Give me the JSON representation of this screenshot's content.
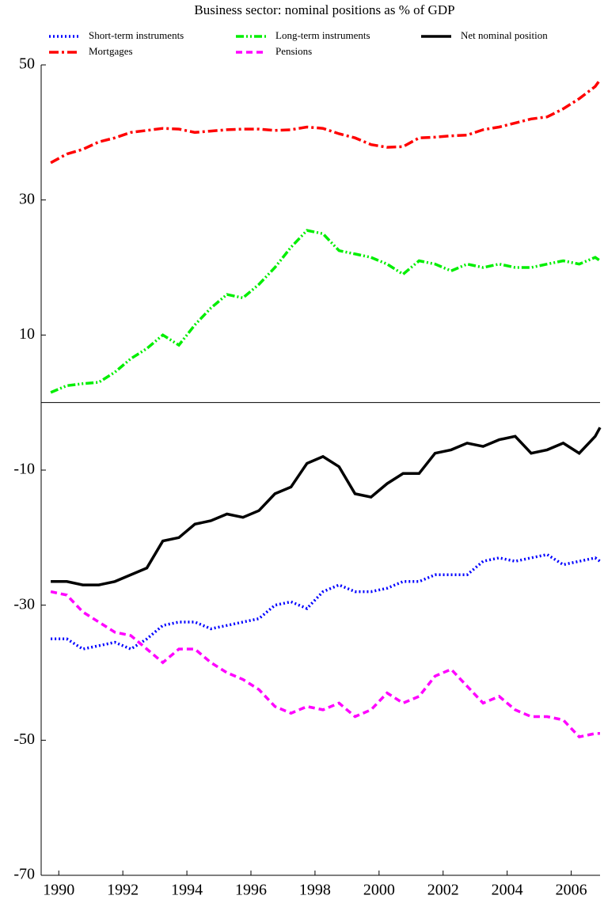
{
  "chart_data": {
    "type": "line",
    "title": "Business sector: nominal positions as % of GDP",
    "x": [
      1989.75,
      1990.25,
      1990.75,
      1991.25,
      1991.75,
      1992.25,
      1992.75,
      1993.25,
      1993.75,
      1994.25,
      1994.75,
      1995.25,
      1995.75,
      1996.25,
      1996.75,
      1997.25,
      1997.75,
      1998.25,
      1998.75,
      1999.25,
      1999.75,
      2000.25,
      2000.75,
      2001.25,
      2001.75,
      2002.25,
      2002.75,
      2003.25,
      2003.75,
      2004.25,
      2004.75,
      2005.25,
      2005.75,
      2006.25,
      2006.75,
      2006.9
    ],
    "series": [
      {
        "name": "Short-term instruments",
        "color": "#0000ff",
        "dash": "dotted",
        "values": [
          -35,
          -35,
          -36.5,
          -36,
          -35.5,
          -36.5,
          -35,
          -33,
          -32.5,
          -32.5,
          -33.5,
          -33,
          -32.5,
          -32,
          -30,
          -29.5,
          -30.5,
          -28,
          -27,
          -28,
          -28,
          -27.5,
          -26.5,
          -26.5,
          -25.5,
          -25.5,
          -25.5,
          -23.5,
          -23,
          -23.5,
          -23,
          -22.5,
          -24,
          -23.5,
          -23,
          -23.5
        ]
      },
      {
        "name": "Long-term instruments",
        "color": "#00ee00",
        "dash": "dashdotdot",
        "values": [
          1.5,
          2.5,
          2.8,
          3,
          4.5,
          6.5,
          8,
          10,
          8.5,
          11.5,
          14,
          16,
          15.5,
          17.5,
          20,
          23,
          25.5,
          25,
          22.5,
          22,
          21.5,
          20.5,
          19,
          21,
          20.5,
          19.5,
          20.5,
          20,
          20.5,
          20,
          20,
          20.5,
          21,
          20.5,
          21.5,
          21
        ]
      },
      {
        "name": "Net nominal position",
        "color": "#000000",
        "dash": "solid",
        "values": [
          -26.5,
          -26.5,
          -27,
          -27,
          -26.5,
          -25.5,
          -24.5,
          -20.5,
          -20,
          -18,
          -17.5,
          -16.5,
          -17,
          -16,
          -13.5,
          -12.5,
          -9,
          -8,
          -9.5,
          -13.5,
          -14,
          -12,
          -10.5,
          -10.5,
          -7.5,
          -7,
          -6,
          -6.5,
          -5.5,
          -5,
          -7.5,
          -7,
          -6,
          -7.5,
          -5,
          -3.7
        ]
      },
      {
        "name": "Mortgages",
        "color": "#ff0000",
        "dash": "dashdot",
        "values": [
          35.5,
          36.8,
          37.5,
          38.6,
          39.2,
          40,
          40.3,
          40.6,
          40.5,
          40,
          40.2,
          40.4,
          40.5,
          40.5,
          40.3,
          40.4,
          40.8,
          40.6,
          39.8,
          39.2,
          38.2,
          37.8,
          37.9,
          39.2,
          39.3,
          39.5,
          39.6,
          40.4,
          40.8,
          41.4,
          42,
          42.3,
          43.5,
          45,
          46.8,
          47.8
        ]
      },
      {
        "name": "Pensions",
        "color": "#ff00ff",
        "dash": "dashed",
        "values": [
          -28,
          -28.5,
          -31,
          -32.5,
          -34,
          -34.5,
          -36.5,
          -38.5,
          -36.5,
          -36.5,
          -38.5,
          -40,
          -41,
          -42.5,
          -45,
          -46,
          -45,
          -45.5,
          -44.5,
          -46.5,
          -45.5,
          -43,
          -44.5,
          -43.5,
          -40.5,
          -39.5,
          -42,
          -44.5,
          -43.5,
          -45.5,
          -46.5,
          -46.5,
          -47,
          -49.5,
          -49,
          -49
        ]
      }
    ],
    "xlim": [
      1989.45,
      2006.9
    ],
    "xticks": [
      1990,
      1992,
      1994,
      1996,
      1998,
      2000,
      2002,
      2004,
      2006
    ],
    "ylim": [
      -70,
      50
    ],
    "yticks": [
      50,
      30,
      10,
      -10,
      -30,
      -50,
      -70
    ],
    "axhline": 0
  }
}
